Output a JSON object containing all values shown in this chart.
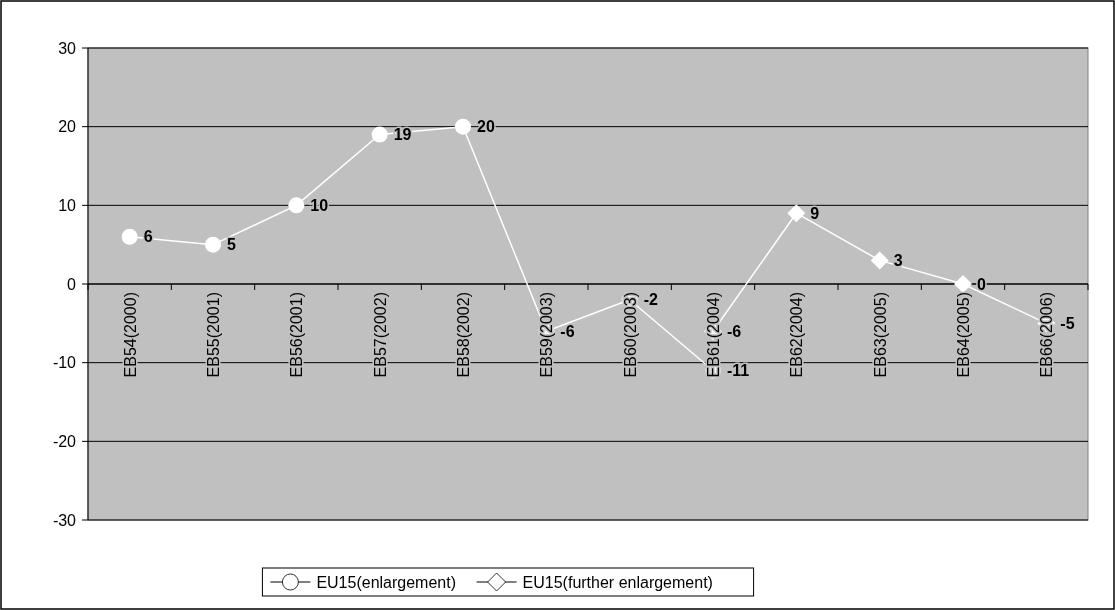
{
  "chart_data": {
    "type": "line",
    "categories": [
      "EB54(2000)",
      "EB55(2001)",
      "EB56(2001)",
      "EB57(2002)",
      "EB58(2002)",
      "EB59(2003)",
      "EB60(2003)",
      "EB61(2004)",
      "EB62(2004)",
      "EB63(2005)",
      "EB64(2005)",
      "EB66(2006)"
    ],
    "series": [
      {
        "name": "EU15(enlargement)",
        "color": "#ffffff",
        "marker": "circle",
        "values": [
          6,
          5,
          10,
          19,
          20,
          -6,
          -2,
          -11,
          null,
          null,
          null,
          null
        ]
      },
      {
        "name": "EU15(further enlargement)",
        "color": "#ffffff",
        "marker": "diamond",
        "values": [
          null,
          null,
          null,
          null,
          null,
          null,
          null,
          -6,
          9,
          3,
          0,
          -5
        ]
      }
    ],
    "ylim": [
      -30,
      30
    ],
    "yticks": [
      -30,
      -20,
      -10,
      0,
      10,
      20,
      30
    ],
    "grid": "y",
    "legend": "bottom",
    "data_labels": true
  }
}
